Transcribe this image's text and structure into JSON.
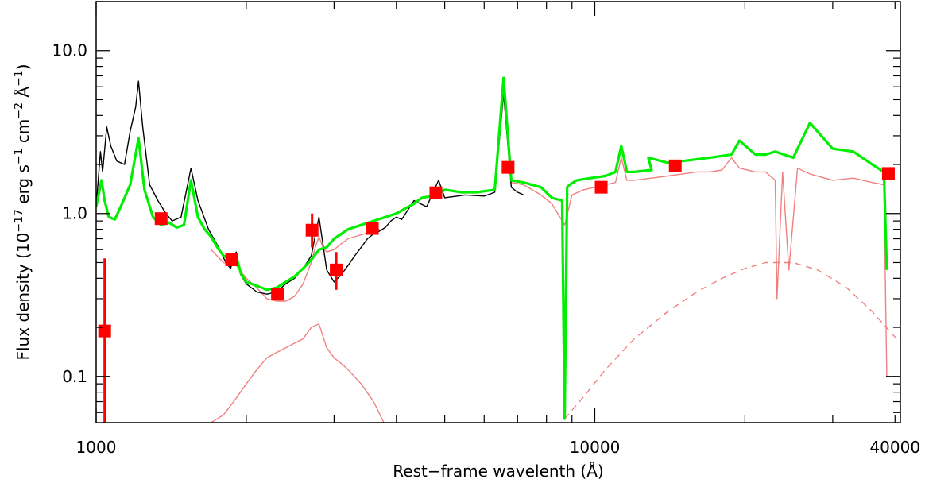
{
  "chart_data": {
    "type": "line",
    "title": "",
    "xlabel": "Rest−frame wavelenth (Å)",
    "ylabel_parts": [
      "Flux density (10",
      "−17",
      " erg s",
      "−1",
      " cm",
      "−2",
      " Å",
      "−1",
      ")"
    ],
    "x_scale": "log",
    "y_scale": "log",
    "xlim": [
      1000,
      41000
    ],
    "ylim": [
      0.052,
      20.0
    ],
    "x_ticks": [
      {
        "value": 1000,
        "label": "1000"
      },
      {
        "value": 10000,
        "label": "10000"
      },
      {
        "value": 40000,
        "label": "40000"
      }
    ],
    "y_ticks": [
      {
        "value": 0.1,
        "label": "0.1"
      },
      {
        "value": 1.0,
        "label": "1.0"
      },
      {
        "value": 10.0,
        "label": "10.0"
      }
    ],
    "grid": false,
    "colors": {
      "observed_spectrum": "#000000",
      "total_model": "#00ee00",
      "components": "#f08080",
      "photometry": "#ff0000"
    },
    "photometry": [
      {
        "x": 1040,
        "y": 0.19,
        "y_low": 0.052,
        "y_high": 0.53
      },
      {
        "x": 1350,
        "y": 0.93
      },
      {
        "x": 1870,
        "y": 0.52
      },
      {
        "x": 2310,
        "y": 0.32
      },
      {
        "x": 2710,
        "y": 0.79,
        "y_low": 0.62,
        "y_high": 1.0
      },
      {
        "x": 3030,
        "y": 0.45,
        "y_low": 0.34,
        "y_high": 0.58
      },
      {
        "x": 3580,
        "y": 0.81
      },
      {
        "x": 4800,
        "y": 1.34
      },
      {
        "x": 6700,
        "y": 1.92
      },
      {
        "x": 10300,
        "y": 1.45
      },
      {
        "x": 14500,
        "y": 1.96
      },
      {
        "x": 38800,
        "y": 1.76
      }
    ],
    "series": [
      {
        "style": "observed",
        "x": [
          1000,
          1020,
          1030,
          1050,
          1070,
          1100,
          1140,
          1170,
          1200,
          1216,
          1240,
          1280,
          1330,
          1380,
          1420,
          1480,
          1549,
          1600,
          1680,
          1760,
          1820,
          1860,
          1909,
          1950,
          2000,
          2100,
          2200,
          2300,
          2400,
          2500,
          2600,
          2700,
          2798,
          2900,
          3000,
          3100,
          3200,
          3300,
          3400,
          3500,
          3600,
          3700,
          3800,
          3900,
          4000,
          4100,
          4340,
          4600,
          4861,
          5000,
          5500,
          6000,
          6300,
          6563,
          6800,
          7000,
          7200
        ],
        "y": [
          1.1,
          2.4,
          1.8,
          3.4,
          2.6,
          2.1,
          2.0,
          3.2,
          4.5,
          6.5,
          3.4,
          1.5,
          1.2,
          1.0,
          0.9,
          0.95,
          1.9,
          1.2,
          0.8,
          0.62,
          0.5,
          0.46,
          0.58,
          0.42,
          0.37,
          0.33,
          0.32,
          0.33,
          0.37,
          0.4,
          0.46,
          0.55,
          0.95,
          0.45,
          0.38,
          0.42,
          0.48,
          0.55,
          0.62,
          0.7,
          0.75,
          0.78,
          0.82,
          0.9,
          0.95,
          0.92,
          1.2,
          1.1,
          1.6,
          1.25,
          1.3,
          1.28,
          1.35,
          5.5,
          1.45,
          1.35,
          1.3
        ]
      },
      {
        "name": "",
        "style": "total",
        "x": [
          1000,
          1025,
          1040,
          1060,
          1090,
          1120,
          1170,
          1216,
          1250,
          1300,
          1350,
          1400,
          1450,
          1500,
          1549,
          1600,
          1650,
          1700,
          1750,
          1800,
          1870,
          1909,
          1950,
          2000,
          2100,
          2200,
          2300,
          2400,
          2500,
          2600,
          2700,
          2800,
          2900,
          3000,
          3100,
          3200,
          3400,
          3600,
          3800,
          4000,
          4340,
          4500,
          4861,
          5000,
          5400,
          5800,
          6300,
          6563,
          6800,
          7200,
          7800,
          8200,
          8600,
          8700,
          8800,
          8900,
          9200,
          9800,
          10500,
          11000,
          11300,
          11600,
          12000,
          13000,
          12800,
          14000,
          15000,
          17000,
          18800,
          19500,
          21000,
          22000,
          23000,
          25000,
          27000,
          30000,
          33000,
          36000,
          38000,
          38500
        ],
        "y": [
          1.1,
          1.6,
          1.2,
          0.95,
          0.92,
          1.1,
          1.5,
          2.9,
          1.4,
          0.95,
          0.85,
          0.88,
          0.82,
          0.85,
          1.6,
          0.95,
          0.8,
          0.72,
          0.62,
          0.55,
          0.52,
          0.55,
          0.43,
          0.38,
          0.36,
          0.34,
          0.35,
          0.38,
          0.41,
          0.46,
          0.52,
          0.6,
          0.62,
          0.7,
          0.75,
          0.8,
          0.85,
          0.9,
          0.95,
          1.0,
          1.15,
          1.25,
          1.3,
          1.4,
          1.35,
          1.35,
          1.4,
          6.8,
          1.6,
          1.55,
          1.45,
          1.25,
          1.2,
          0.055,
          1.45,
          1.5,
          1.6,
          1.65,
          1.7,
          1.8,
          2.6,
          1.8,
          1.8,
          1.85,
          2.2,
          2.05,
          2.1,
          2.2,
          2.3,
          2.8,
          2.3,
          2.3,
          2.4,
          2.2,
          3.6,
          2.5,
          2.4,
          2.0,
          1.8,
          0.45
        ]
      },
      {
        "name": "",
        "style": "component",
        "x": [
          6300,
          6563,
          6800,
          7200,
          7800,
          8200,
          8700,
          9000,
          9500,
          10000,
          10500,
          11000,
          11300,
          11600,
          12000,
          13000,
          14000,
          15000,
          16000,
          17000,
          18000,
          18800,
          19500,
          21000,
          22000,
          23000,
          23200,
          23800,
          24500,
          25500,
          27000,
          30000,
          33000,
          36000,
          38000,
          38500
        ],
        "y": [
          1.4,
          6.8,
          1.55,
          1.5,
          1.3,
          1.15,
          0.85,
          1.3,
          1.4,
          1.45,
          1.5,
          1.55,
          2.2,
          1.6,
          1.6,
          1.65,
          1.7,
          1.75,
          1.8,
          1.8,
          1.85,
          2.2,
          1.9,
          1.8,
          1.8,
          1.6,
          0.3,
          1.8,
          0.45,
          1.9,
          1.75,
          1.6,
          1.65,
          1.55,
          1.5,
          0.1
        ]
      },
      {
        "name": "",
        "style": "component",
        "x": [
          1700,
          1800,
          1909,
          2000,
          2100,
          2200,
          2300,
          2400,
          2500,
          2600,
          2700,
          2750,
          2798,
          2850,
          2900,
          3000,
          3100,
          3200,
          3300,
          3400,
          3500,
          3600,
          3700
        ],
        "y": [
          0.6,
          0.5,
          0.48,
          0.4,
          0.35,
          0.3,
          0.29,
          0.29,
          0.31,
          0.37,
          0.5,
          0.62,
          0.72,
          0.62,
          0.58,
          0.6,
          0.65,
          0.7,
          0.72,
          0.74,
          0.76,
          0.78,
          0.8
        ]
      },
      {
        "name": "",
        "style": "component",
        "x": [
          1700,
          1800,
          1900,
          2000,
          2100,
          2200,
          2300,
          2400,
          2500,
          2600,
          2700,
          2798,
          2900,
          3000,
          3100,
          3200,
          3400,
          3600,
          3800
        ],
        "y": [
          0.052,
          0.058,
          0.072,
          0.09,
          0.11,
          0.13,
          0.14,
          0.15,
          0.16,
          0.17,
          0.2,
          0.21,
          0.15,
          0.13,
          0.12,
          0.11,
          0.09,
          0.07,
          0.05
        ]
      },
      {
        "name": "",
        "style": "component-dashed",
        "x": [
          8700,
          9500,
          10500,
          12000,
          14000,
          16000,
          18000,
          20000,
          22000,
          25000,
          28000,
          32000,
          36000,
          41000
        ],
        "y": [
          0.055,
          0.075,
          0.11,
          0.17,
          0.25,
          0.33,
          0.4,
          0.46,
          0.5,
          0.5,
          0.45,
          0.35,
          0.25,
          0.16
        ]
      }
    ]
  }
}
